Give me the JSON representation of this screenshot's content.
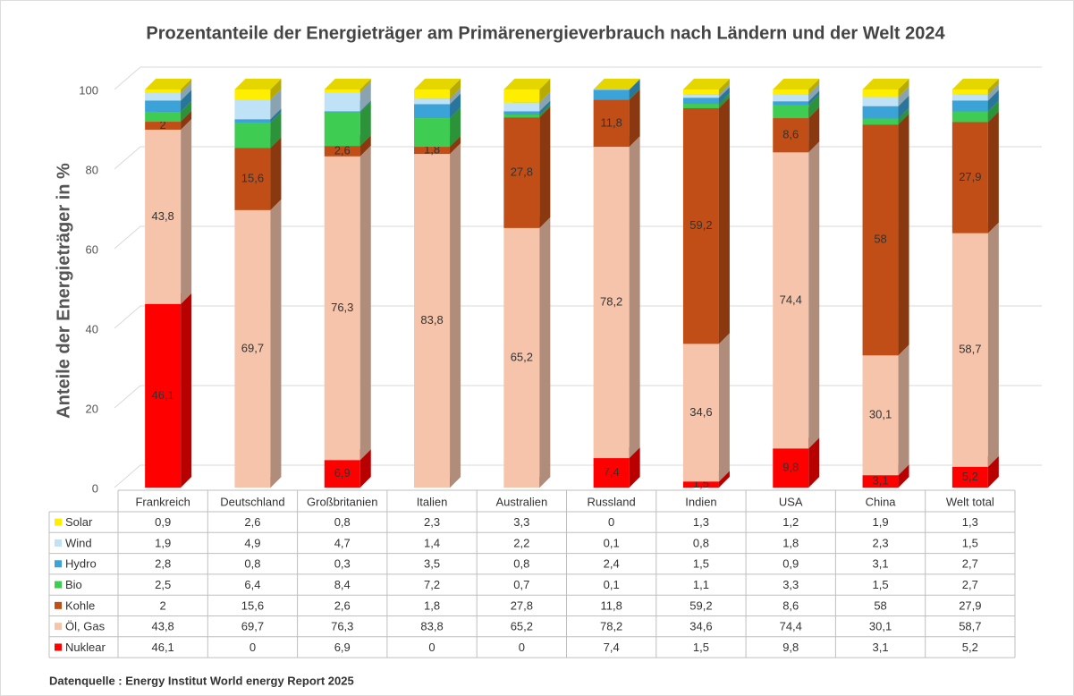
{
  "chart_data": {
    "type": "stacked_bar_3d",
    "title": "Prozentanteile der Energieträger am Primärenergieverbrauch nach Ländern und der Welt 2024",
    "y_axis_label": "Anteile der Energieträger in %",
    "source": "Datenquelle : Energy Institut World energy Report 2025",
    "categories": [
      "Frankreich",
      "Deutschland",
      "Großbritanien",
      "Italien",
      "Australien",
      "Russland",
      "Indien",
      "USA",
      "China",
      "Welt total"
    ],
    "ylim": [
      0,
      100
    ],
    "yticks": [
      0,
      20,
      40,
      60,
      80,
      100
    ],
    "grid": true,
    "series": [
      {
        "name": "Nuklear",
        "color": "#ff0000",
        "data_labels": true,
        "values": [
          46.1,
          0,
          6.9,
          0,
          0,
          7.4,
          1.5,
          9.8,
          3.1,
          5.2
        ],
        "value_labels": [
          "46,1",
          "0",
          "6,9",
          "0",
          "0",
          "7,4",
          "1,5",
          "9,8",
          "3,1",
          "5,2"
        ]
      },
      {
        "name": "Öl, Gas",
        "color": "#f5c4ab",
        "data_labels": true,
        "values": [
          43.8,
          69.7,
          76.3,
          83.8,
          65.2,
          78.2,
          34.6,
          74.4,
          30.1,
          58.7
        ],
        "value_labels": [
          "43,8",
          "69,7",
          "76,3",
          "83,8",
          "65,2",
          "78,2",
          "34,6",
          "74,4",
          "30,1",
          "58,7"
        ]
      },
      {
        "name": "Kohle",
        "color": "#c04e16",
        "data_labels": true,
        "values": [
          2,
          15.6,
          2.6,
          1.8,
          27.8,
          11.8,
          59.2,
          8.6,
          58,
          27.9
        ],
        "value_labels": [
          "2",
          "15,6",
          "2,6",
          "1,8",
          "27,8",
          "11,8",
          "59,2",
          "8,6",
          "58",
          "27,9"
        ]
      },
      {
        "name": "Bio",
        "color": "#3fcc52",
        "data_labels": false,
        "values": [
          2.5,
          6.4,
          8.4,
          7.2,
          0.7,
          0.1,
          1.1,
          3.3,
          1.5,
          2.7
        ],
        "value_labels": [
          "2,5",
          "6,4",
          "8,4",
          "7,2",
          "0,7",
          "0,1",
          "1,1",
          "3,3",
          "1,5",
          "2,7"
        ]
      },
      {
        "name": "Hydro",
        "color": "#3ba3d8",
        "data_labels": false,
        "values": [
          2.8,
          0.8,
          0.3,
          3.5,
          0.8,
          2.4,
          1.5,
          0.9,
          3.1,
          2.7
        ],
        "value_labels": [
          "2,8",
          "0,8",
          "0,3",
          "3,5",
          "0,8",
          "2,4",
          "1,5",
          "0,9",
          "3,1",
          "2,7"
        ]
      },
      {
        "name": "Wind",
        "color": "#bfe2f6",
        "data_labels": false,
        "values": [
          1.9,
          4.9,
          4.7,
          1.4,
          2.2,
          0.1,
          0.8,
          1.8,
          2.3,
          1.5
        ],
        "value_labels": [
          "1,9",
          "4,9",
          "4,7",
          "1,4",
          "2,2",
          "0,1",
          "0,8",
          "1,8",
          "2,3",
          "1,5"
        ]
      },
      {
        "name": "Solar",
        "color": "#ffee00",
        "data_labels": false,
        "values": [
          0.9,
          2.6,
          0.8,
          2.3,
          3.3,
          0,
          1.3,
          1.2,
          1.9,
          1.3
        ],
        "value_labels": [
          "0,9",
          "2,6",
          "0,8",
          "2,3",
          "3,3",
          "0",
          "1,3",
          "1,2",
          "1,9",
          "1,3"
        ]
      }
    ]
  }
}
